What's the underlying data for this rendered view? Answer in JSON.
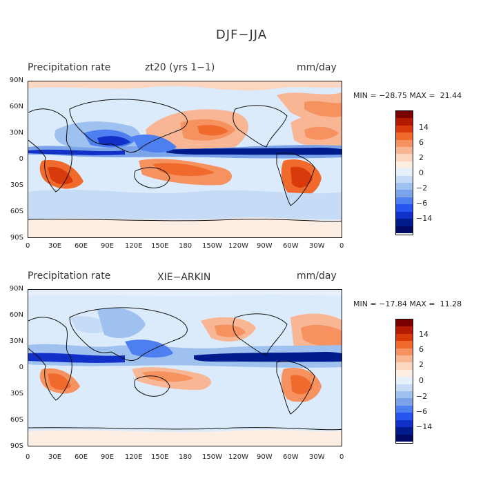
{
  "figure_title": "DJF−JJA",
  "panels": [
    {
      "left_label": "Precipitation rate",
      "center_label": "zt20 (yrs 1−1)",
      "right_label": "mm/day",
      "minmax": "MIN = −28.75 MAX =  21.44"
    },
    {
      "left_label": "Precipitation rate",
      "center_label": "XIE−ARKIN",
      "right_label": "mm/day",
      "minmax": "MIN = −17.84 MAX =  11.28"
    }
  ],
  "x_ticks": [
    "0",
    "30E",
    "60E",
    "90E",
    "120E",
    "150E",
    "180",
    "150W",
    "120W",
    "90W",
    "60W",
    "30W",
    "0"
  ],
  "y_ticks": [
    "90N",
    "60N",
    "30N",
    "0",
    "30S",
    "60S",
    "90S"
  ],
  "colorbar": {
    "labels": [
      "14",
      "6",
      "2",
      "0",
      "−2",
      "−6",
      "−14"
    ],
    "colors": [
      "#7a0000",
      "#b31a00",
      "#d93a0c",
      "#f06a2e",
      "#f5925f",
      "#f8b694",
      "#fbd6c0",
      "#fdeee3",
      "#e6f0fb",
      "#c6dbf6",
      "#9fc1f0",
      "#7aa3ea",
      "#4e7ff0",
      "#2555ee",
      "#1030c8",
      "#001b8c",
      "#000a66"
    ]
  }
}
